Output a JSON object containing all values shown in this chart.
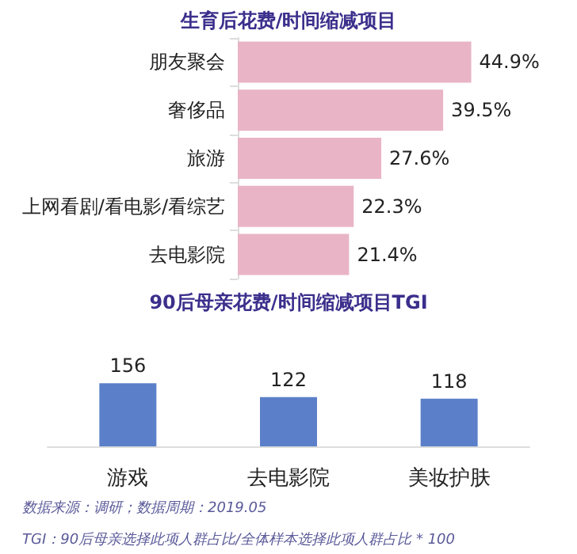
{
  "chart_data": [
    {
      "type": "bar",
      "title": "生育后花费/时间缩减项目",
      "orientation": "horizontal",
      "categories": [
        "朋友聚会",
        "奢侈品",
        "旅游",
        "上网看剧/看电影/看综艺",
        "去电影院"
      ],
      "values": [
        44.9,
        39.5,
        27.6,
        22.3,
        21.4
      ],
      "value_labels": [
        "44.9%",
        "39.5%",
        "27.6%",
        "22.3%",
        "21.4%"
      ],
      "color": "#e9b5c6"
    },
    {
      "type": "bar",
      "title": "90后母亲花费/时间缩减项目TGI",
      "categories": [
        "游戏",
        "去电影院",
        "美妆护肤"
      ],
      "values": [
        156,
        122,
        118
      ],
      "data_labels": true,
      "color": "#5b80c9",
      "annotations": [
        "数据来源：调研；数据周期：2019.05",
        "TGI：90后母亲选择此项人群占比/全体样本选择此项人群占比 * 100"
      ]
    }
  ]
}
